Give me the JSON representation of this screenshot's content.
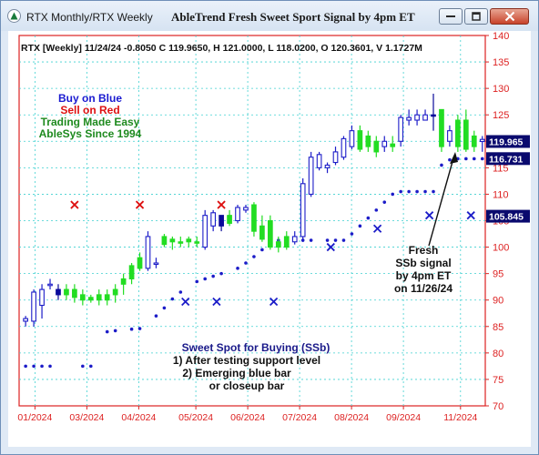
{
  "window": {
    "title": "RTX Monthly/RTX Weekly",
    "chart_title": "AbleTrend Fresh Sweet Sport Signal by 4pm ET",
    "icons": [
      "app-icon",
      "minimize-icon",
      "restore-icon",
      "close-icon"
    ]
  },
  "chart_data": {
    "type": "candlestick",
    "header": "RTX [Weekly] 11/24/24  -0.8050 C 119.9650, H 121.0000, L 118.0200, O 120.3601, V 1.1727M",
    "ylim": [
      70,
      140
    ],
    "yticks": [
      70,
      75,
      80,
      85,
      90,
      95,
      100,
      105,
      110,
      115,
      120,
      125,
      130,
      135,
      140
    ],
    "x_tick_labels": [
      "01/2024",
      "03/2024",
      "04/2024",
      "05/2024",
      "06/2024",
      "07/2024",
      "08/2024",
      "09/2024",
      "11/2024"
    ],
    "price_labels": [
      {
        "value": 119.965,
        "text": "119.965",
        "color": "#0a0a6e"
      },
      {
        "value": 116.731,
        "text": "116.731",
        "color": "#0a0a6e"
      },
      {
        "value": 105.845,
        "text": "105.845",
        "color": "#0a0a6e"
      }
    ],
    "colors": {
      "blue": "#1c1cc8",
      "green": "#22dd22",
      "dark_blue": "#0a0a9a",
      "red_x": "#dd1111",
      "axis": "#dd2222",
      "grid": "#3fd0d0"
    },
    "legend_text": [
      {
        "text": "Buy on Blue",
        "color": "#1a1ad0"
      },
      {
        "text": "Sell on Red",
        "color": "#dd1111"
      },
      {
        "text": "Trading Made Easy",
        "color": "#1e8a1e"
      },
      {
        "text": "AbleSys Since 1994",
        "color": "#1e8a1e"
      }
    ],
    "annotation_fresh": [
      "Fresh",
      "SSb signal",
      "by 4pm ET",
      "on 11/26/24"
    ],
    "annotation_sweet_spot": [
      "Sweet Spot for Buying (SSb)",
      "1) After testing support level",
      "2) Emerging blue bar",
      "or closeup bar"
    ],
    "candles": [
      {
        "o": 86,
        "h": 87,
        "l": 85,
        "c": 86.5,
        "color": "blue"
      },
      {
        "o": 86,
        "h": 92,
        "l": 85,
        "c": 91.5,
        "color": "blue"
      },
      {
        "o": 89,
        "h": 93,
        "l": 86.5,
        "c": 92,
        "color": "blue"
      },
      {
        "o": 93,
        "h": 94,
        "l": 92,
        "c": 93,
        "color": "blue"
      },
      {
        "o": 91,
        "h": 93,
        "l": 90,
        "c": 92,
        "color": "dark_blue"
      },
      {
        "o": 92,
        "h": 93,
        "l": 90,
        "c": 91,
        "color": "green"
      },
      {
        "o": 92,
        "h": 93,
        "l": 89.5,
        "c": 90.5,
        "color": "green"
      },
      {
        "o": 91,
        "h": 92,
        "l": 89,
        "c": 90,
        "color": "green"
      },
      {
        "o": 90,
        "h": 91,
        "l": 89.5,
        "c": 90.5,
        "color": "green"
      },
      {
        "o": 90,
        "h": 92,
        "l": 89,
        "c": 91,
        "color": "green"
      },
      {
        "o": 90,
        "h": 92,
        "l": 89,
        "c": 91,
        "color": "green"
      },
      {
        "o": 91,
        "h": 93,
        "l": 89.5,
        "c": 92,
        "color": "green"
      },
      {
        "o": 93,
        "h": 95,
        "l": 91,
        "c": 94,
        "color": "green"
      },
      {
        "o": 94,
        "h": 97,
        "l": 93,
        "c": 96.5,
        "color": "green"
      },
      {
        "o": 96,
        "h": 99,
        "l": 95.5,
        "c": 98,
        "color": "green"
      },
      {
        "o": 96,
        "h": 103,
        "l": 95.5,
        "c": 102,
        "color": "blue"
      },
      {
        "o": 97,
        "h": 98,
        "l": 96,
        "c": 97,
        "color": "blue"
      },
      {
        "o": 102,
        "h": 102.5,
        "l": 100,
        "c": 100.5,
        "color": "green"
      },
      {
        "o": 101,
        "h": 102,
        "l": 99.5,
        "c": 101.5,
        "color": "green"
      },
      {
        "o": 101,
        "h": 102,
        "l": 100,
        "c": 101,
        "color": "green"
      },
      {
        "o": 101,
        "h": 102,
        "l": 100,
        "c": 101.5,
        "color": "green"
      },
      {
        "o": 101,
        "h": 102,
        "l": 100,
        "c": 101,
        "color": "green"
      },
      {
        "o": 100,
        "h": 107,
        "l": 99.5,
        "c": 106,
        "color": "blue"
      },
      {
        "o": 104,
        "h": 107,
        "l": 103,
        "c": 106.5,
        "color": "blue"
      },
      {
        "o": 104,
        "h": 106,
        "l": 103,
        "c": 106,
        "color": "dark_blue"
      },
      {
        "o": 106,
        "h": 107,
        "l": 104,
        "c": 104.5,
        "color": "green"
      },
      {
        "o": 105,
        "h": 108,
        "l": 104.5,
        "c": 107.5,
        "color": "blue"
      },
      {
        "o": 107,
        "h": 108,
        "l": 106.5,
        "c": 107.5,
        "color": "blue"
      },
      {
        "o": 108,
        "h": 108.5,
        "l": 102,
        "c": 103,
        "color": "green"
      },
      {
        "o": 104,
        "h": 106,
        "l": 101,
        "c": 101.5,
        "color": "green"
      },
      {
        "o": 105,
        "h": 106,
        "l": 99.5,
        "c": 100,
        "color": "green"
      },
      {
        "o": 101,
        "h": 102,
        "l": 99,
        "c": 100,
        "color": "green"
      },
      {
        "o": 100,
        "h": 103,
        "l": 99.5,
        "c": 102,
        "color": "green"
      },
      {
        "o": 101,
        "h": 103,
        "l": 100.5,
        "c": 102,
        "color": "blue"
      },
      {
        "o": 102,
        "h": 113,
        "l": 101,
        "c": 112,
        "color": "blue"
      },
      {
        "o": 110,
        "h": 118,
        "l": 109.5,
        "c": 117,
        "color": "blue"
      },
      {
        "o": 115,
        "h": 118,
        "l": 114.5,
        "c": 117.5,
        "color": "blue"
      },
      {
        "o": 115,
        "h": 116,
        "l": 114,
        "c": 115.5,
        "color": "blue"
      },
      {
        "o": 116,
        "h": 119,
        "l": 115.5,
        "c": 118,
        "color": "blue"
      },
      {
        "o": 117,
        "h": 121,
        "l": 116.5,
        "c": 120.5,
        "color": "blue"
      },
      {
        "o": 119,
        "h": 123,
        "l": 118.5,
        "c": 122,
        "color": "blue"
      },
      {
        "o": 122,
        "h": 123,
        "l": 118,
        "c": 118.5,
        "color": "green"
      },
      {
        "o": 121,
        "h": 122,
        "l": 118,
        "c": 119,
        "color": "green"
      },
      {
        "o": 120,
        "h": 121,
        "l": 117,
        "c": 118,
        "color": "green"
      },
      {
        "o": 119,
        "h": 121,
        "l": 118,
        "c": 120,
        "color": "blue"
      },
      {
        "o": 119,
        "h": 121,
        "l": 118,
        "c": 119.5,
        "color": "green"
      },
      {
        "o": 120,
        "h": 125,
        "l": 119,
        "c": 124.5,
        "color": "blue"
      },
      {
        "o": 124,
        "h": 126,
        "l": 123,
        "c": 124.5,
        "color": "blue"
      },
      {
        "o": 124,
        "h": 126,
        "l": 123,
        "c": 125,
        "color": "blue"
      },
      {
        "o": 124,
        "h": 126,
        "l": 124,
        "c": 125,
        "color": "blue"
      },
      {
        "o": 125,
        "h": 129,
        "l": 122,
        "c": 125,
        "color": "dark_blue"
      },
      {
        "o": 126,
        "h": 126,
        "l": 118,
        "c": 119,
        "color": "green"
      },
      {
        "o": 120,
        "h": 123,
        "l": 119,
        "c": 122,
        "color": "blue"
      },
      {
        "o": 124,
        "h": 125,
        "l": 118,
        "c": 119,
        "color": "green"
      },
      {
        "o": 124,
        "h": 126,
        "l": 118,
        "c": 118.5,
        "color": "green"
      },
      {
        "o": 121,
        "h": 122,
        "l": 118,
        "c": 119,
        "color": "green"
      },
      {
        "o": 120.36,
        "h": 121,
        "l": 118.02,
        "c": 119.965,
        "color": "blue"
      }
    ],
    "support_dots": [
      {
        "i": 0,
        "y": 77.5
      },
      {
        "i": 1,
        "y": 77.5
      },
      {
        "i": 2,
        "y": 77.5
      },
      {
        "i": 3,
        "y": 77.5
      },
      {
        "i": 7,
        "y": 77.5
      },
      {
        "i": 8,
        "y": 77.5
      },
      {
        "i": 10,
        "y": 84
      },
      {
        "i": 11,
        "y": 84.2
      },
      {
        "i": 13,
        "y": 84.5
      },
      {
        "i": 14,
        "y": 84.6
      },
      {
        "i": 16,
        "y": 87
      },
      {
        "i": 17,
        "y": 88.5
      },
      {
        "i": 18,
        "y": 90.2
      },
      {
        "i": 19,
        "y": 91.5
      },
      {
        "i": 21,
        "y": 93.5
      },
      {
        "i": 22,
        "y": 94
      },
      {
        "i": 23,
        "y": 94.5
      },
      {
        "i": 24,
        "y": 95
      },
      {
        "i": 26,
        "y": 96
      },
      {
        "i": 27,
        "y": 97
      },
      {
        "i": 28,
        "y": 98.2
      },
      {
        "i": 29,
        "y": 99.5
      },
      {
        "i": 31,
        "y": 101.3
      },
      {
        "i": 32,
        "y": 101.3
      },
      {
        "i": 33,
        "y": 101.3
      },
      {
        "i": 34,
        "y": 101.3
      },
      {
        "i": 35,
        "y": 101.3
      },
      {
        "i": 37,
        "y": 101.3
      },
      {
        "i": 38,
        "y": 101.3
      },
      {
        "i": 39,
        "y": 101.3
      },
      {
        "i": 40,
        "y": 102.5
      },
      {
        "i": 41,
        "y": 104
      },
      {
        "i": 42,
        "y": 105.5
      },
      {
        "i": 43,
        "y": 107
      },
      {
        "i": 44,
        "y": 108.5
      },
      {
        "i": 45,
        "y": 110
      },
      {
        "i": 46,
        "y": 110.5
      },
      {
        "i": 47,
        "y": 110.5
      },
      {
        "i": 48,
        "y": 110.5
      },
      {
        "i": 49,
        "y": 110.5
      },
      {
        "i": 50,
        "y": 110.5
      },
      {
        "i": 51,
        "y": 115.5
      },
      {
        "i": 52,
        "y": 116.5
      },
      {
        "i": 53,
        "y": 116.7
      },
      {
        "i": 54,
        "y": 116.7
      },
      {
        "i": 55,
        "y": 116.7
      },
      {
        "i": 56,
        "y": 116.7
      },
      {
        "i": 57,
        "y": 116.7
      }
    ],
    "red_x": [
      {
        "i": 6,
        "y": 108
      },
      {
        "i": 14,
        "y": 108
      },
      {
        "i": 24,
        "y": 108
      }
    ],
    "blue_x": [
      {
        "i": 31,
        "y": 89.7
      },
      {
        "i": 37,
        "y": 89.7
      },
      {
        "i": 48,
        "y": 89.7
      },
      {
        "i": 59,
        "y": 100
      },
      {
        "i": 68,
        "y": 103.5
      },
      {
        "i": 78,
        "y": 106
      },
      {
        "i": 86,
        "y": 106
      }
    ]
  }
}
